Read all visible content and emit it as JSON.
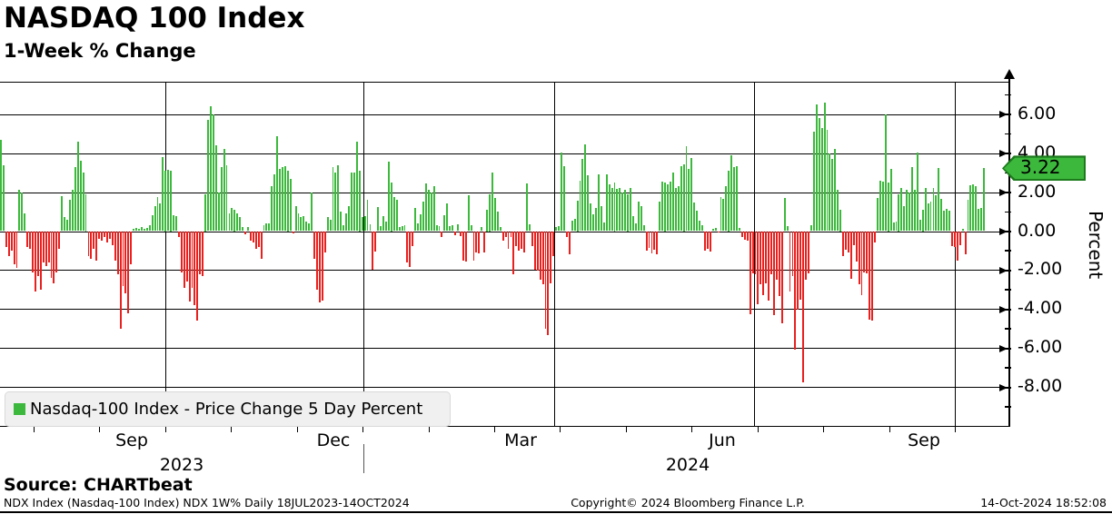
{
  "header": {
    "title": "NASDAQ 100 Index",
    "subtitle": "1-Week % Change"
  },
  "chart_data": {
    "type": "bar",
    "title": "NASDAQ 100 Index",
    "subtitle": "1-Week % Change",
    "series_name": "Nasdaq-100 Index - Price Change 5 Day Percent",
    "ylabel": "Percent",
    "ylim": [
      -10,
      8
    ],
    "grid": true,
    "legend_position": "bottom-left",
    "yticks": [
      6,
      4,
      2,
      0,
      -2,
      -4,
      -6,
      -8
    ],
    "ytick_labels": [
      "6.00",
      "4.00",
      "2.00",
      "0.00",
      "-2.00",
      "-4.00",
      "-6.00",
      "-8.00"
    ],
    "xtick_labels": [
      "Sep",
      "Dec",
      "Mar",
      "Jun",
      "Sep"
    ],
    "year_labels": [
      "2023",
      "2024"
    ],
    "last_value": 3.22,
    "last_value_label": "3.22",
    "positive_color": "#3cb83c",
    "negative_color": "#e8201e",
    "values": [
      4.7,
      3.4,
      -0.8,
      -1.3,
      -1.0,
      -1.7,
      -1.9,
      2.1,
      2.0,
      0.9,
      -0.8,
      -0.9,
      -2.1,
      -3.1,
      -2.3,
      -3.0,
      -1.6,
      -1.8,
      -1.6,
      -2.4,
      -2.7,
      -2.1,
      -0.9,
      1.8,
      0.7,
      0.6,
      1.6,
      2.1,
      3.3,
      4.6,
      3.6,
      3.0,
      1.9,
      -1.3,
      -1.4,
      -0.9,
      -1.5,
      -0.4,
      -0.5,
      -0.3,
      -0.6,
      -0.4,
      -0.7,
      -1.5,
      -2.2,
      -5.0,
      -2.8,
      -3.2,
      -4.2,
      -1.7,
      0.1,
      0.15,
      0.1,
      0.2,
      0.1,
      0.15,
      0.3,
      0.8,
      1.3,
      1.75,
      1.4,
      3.8,
      3.1,
      3.15,
      3.1,
      0.8,
      0.75,
      -0.3,
      -2.1,
      -2.9,
      -2.6,
      -3.6,
      -2.9,
      -3.8,
      -4.6,
      -2.2,
      -2.3,
      1.9,
      5.7,
      6.4,
      6.0,
      4.4,
      2.0,
      3.3,
      4.2,
      3.4,
      0.9,
      1.2,
      1.1,
      0.9,
      0.7,
      0.2,
      -0.15,
      0.2,
      -0.5,
      -0.6,
      -0.9,
      -0.8,
      -1.4,
      0.3,
      0.4,
      0.4,
      2.3,
      2.9,
      4.85,
      3.2,
      3.3,
      3.35,
      3.1,
      2.7,
      -0.1,
      1.3,
      0.9,
      0.7,
      0.75,
      0.5,
      0.4,
      2.0,
      -1.4,
      -3.0,
      -3.65,
      -3.55,
      -1.1,
      0.7,
      0.6,
      3.3,
      3.0,
      3.4,
      1.0,
      0.3,
      0.9,
      1.3,
      3.0,
      3.0,
      4.6,
      3.1,
      0.7,
      0.75,
      1.6,
      0.35,
      -2.0,
      -1.05,
      1.25,
      0.25,
      0.75,
      0.5,
      3.55,
      2.5,
      1.75,
      1.6,
      0.2,
      0.25,
      0.3,
      -1.6,
      -1.85,
      -0.75,
      1.2,
      0.4,
      0.85,
      1.5,
      2.45,
      2.1,
      2.0,
      2.3,
      0.3,
      0.25,
      -0.3,
      0.8,
      1.4,
      0.25,
      0.3,
      -0.2,
      0.35,
      -0.25,
      -1.5,
      -1.55,
      1.85,
      0.3,
      -1.5,
      -1.1,
      -1.15,
      0.2,
      -1.1,
      1.1,
      1.9,
      3.0,
      1.7,
      1.0,
      0.2,
      -0.5,
      -0.3,
      -0.9,
      -0.3,
      -2.2,
      -0.75,
      -1.0,
      -0.9,
      -1.1,
      2.45,
      0.35,
      -0.75,
      -2.0,
      -2.05,
      -2.5,
      -2.75,
      -5.0,
      -5.35,
      -2.7,
      -1.3,
      0.2,
      0.25,
      4.05,
      3.35,
      -0.3,
      -1.2,
      0.55,
      0.65,
      1.55,
      2.6,
      3.7,
      4.45,
      2.85,
      1.4,
      0.85,
      1.2,
      2.9,
      1.3,
      0.45,
      2.9,
      2.4,
      2.2,
      2.5,
      2.15,
      2.2,
      2.0,
      2.1,
      1.9,
      2.2,
      0.75,
      0.4,
      1.5,
      1.3,
      0.3,
      -1.0,
      -0.85,
      -1.15,
      -0.95,
      -1.2,
      1.5,
      2.55,
      2.5,
      2.4,
      2.55,
      3.0,
      2.2,
      2.3,
      3.35,
      3.45,
      4.35,
      3.2,
      3.75,
      1.45,
      1.05,
      0.55,
      0.3,
      -1.0,
      -0.9,
      -1.05,
      0.1,
      0.15,
      -0.05,
      1.75,
      1.65,
      2.3,
      3.1,
      3.9,
      3.3,
      3.35,
      0.15,
      -0.3,
      -0.45,
      -0.5,
      -4.25,
      -2.15,
      -2.2,
      -3.75,
      -2.75,
      -3.3,
      -2.7,
      -3.55,
      -2.2,
      -4.3,
      -2.5,
      -3.35,
      -4.75,
      1.7,
      0.25,
      -3.1,
      -2.3,
      -6.1,
      -4.05,
      -3.5,
      -7.75,
      -2.5,
      -2.15,
      0.3,
      5.1,
      6.5,
      5.8,
      5.3,
      6.6,
      5.2,
      4.0,
      3.7,
      4.2,
      2.1,
      1.1,
      -1.3,
      -0.95,
      -1.1,
      -2.45,
      -0.7,
      -1.55,
      -2.75,
      -3.3,
      -2.1,
      -2.15,
      -4.55,
      -4.6,
      -0.6,
      1.7,
      2.6,
      2.55,
      6.0,
      2.5,
      3.2,
      0.45,
      0.5,
      1.9,
      2.2,
      1.3,
      2.1,
      2.0,
      3.3,
      2.1,
      4.05,
      0.6,
      1.1,
      2.2,
      1.4,
      1.5,
      2.2,
      1.85,
      3.25,
      1.65,
      1.05,
      1.15,
      1.05,
      -0.75,
      -0.8,
      -1.5,
      -0.7,
      0.1,
      -1.2,
      1.6,
      2.35,
      2.4,
      2.3,
      1.15,
      1.2,
      3.22
    ]
  },
  "legend": {
    "swatch_color": "#3cb83c",
    "label": "Nasdaq-100 Index - Price Change 5 Day Percent"
  },
  "source": {
    "label": "Source: CHARTbeat"
  },
  "footer": {
    "left": "NDX Index (Nasdaq-100 Index) NDX 1W%  Daily 18JUL2023-14OCT2024",
    "center": "Copyright© 2024 Bloomberg Finance L.P.",
    "right": "14-Oct-2024 18:52:08"
  }
}
